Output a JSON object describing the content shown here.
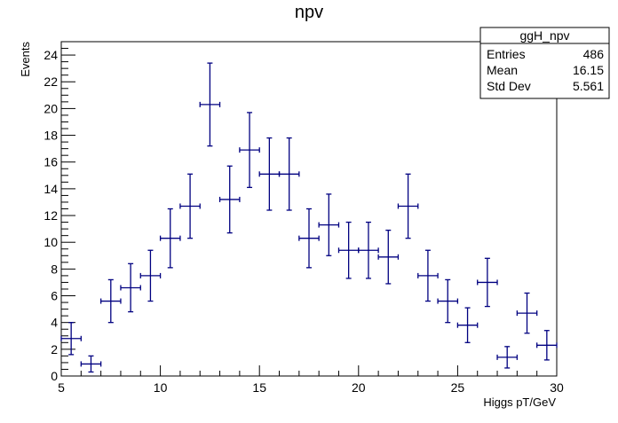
{
  "chart_data": {
    "type": "scatter",
    "title": "npv",
    "xlabel": "Higgs pT/GeV",
    "ylabel": "Events",
    "xlim": [
      5,
      30
    ],
    "ylim": [
      0,
      25
    ],
    "x_ticks": [
      5,
      10,
      15,
      20,
      25,
      30
    ],
    "y_ticks": [
      0,
      2,
      4,
      6,
      8,
      10,
      12,
      14,
      16,
      18,
      20,
      22,
      24
    ],
    "grid": false,
    "marker_color": "#000080",
    "series": [
      {
        "bin_width": 1,
        "points": [
          {
            "x": 5.5,
            "y": 2.8,
            "err": 1.2
          },
          {
            "x": 6.5,
            "y": 0.9,
            "err": 0.6
          },
          {
            "x": 7.5,
            "y": 5.6,
            "err": 1.6
          },
          {
            "x": 8.5,
            "y": 6.6,
            "err": 1.8
          },
          {
            "x": 9.5,
            "y": 7.5,
            "err": 1.9
          },
          {
            "x": 10.5,
            "y": 10.3,
            "err": 2.2
          },
          {
            "x": 11.5,
            "y": 12.7,
            "err": 2.4
          },
          {
            "x": 12.5,
            "y": 20.3,
            "err": 3.1
          },
          {
            "x": 13.5,
            "y": 13.2,
            "err": 2.5
          },
          {
            "x": 14.5,
            "y": 16.9,
            "err": 2.8
          },
          {
            "x": 15.5,
            "y": 15.1,
            "err": 2.7
          },
          {
            "x": 16.5,
            "y": 15.1,
            "err": 2.7
          },
          {
            "x": 17.5,
            "y": 10.3,
            "err": 2.2
          },
          {
            "x": 18.5,
            "y": 11.3,
            "err": 2.3
          },
          {
            "x": 19.5,
            "y": 9.4,
            "err": 2.1
          },
          {
            "x": 20.5,
            "y": 9.4,
            "err": 2.1
          },
          {
            "x": 21.5,
            "y": 8.9,
            "err": 2.0
          },
          {
            "x": 22.5,
            "y": 12.7,
            "err": 2.4
          },
          {
            "x": 23.5,
            "y": 7.5,
            "err": 1.9
          },
          {
            "x": 24.5,
            "y": 5.6,
            "err": 1.6
          },
          {
            "x": 25.5,
            "y": 3.8,
            "err": 1.3
          },
          {
            "x": 26.5,
            "y": 7.0,
            "err": 1.8
          },
          {
            "x": 27.5,
            "y": 1.4,
            "err": 0.8
          },
          {
            "x": 28.5,
            "y": 4.7,
            "err": 1.5
          },
          {
            "x": 29.5,
            "y": 2.3,
            "err": 1.1
          }
        ]
      }
    ]
  },
  "stats_box": {
    "title": "ggH_npv",
    "rows": [
      {
        "label": "Entries",
        "value": "486"
      },
      {
        "label": "Mean",
        "value": "16.15"
      },
      {
        "label": "Std Dev",
        "value": "5.561"
      }
    ]
  }
}
